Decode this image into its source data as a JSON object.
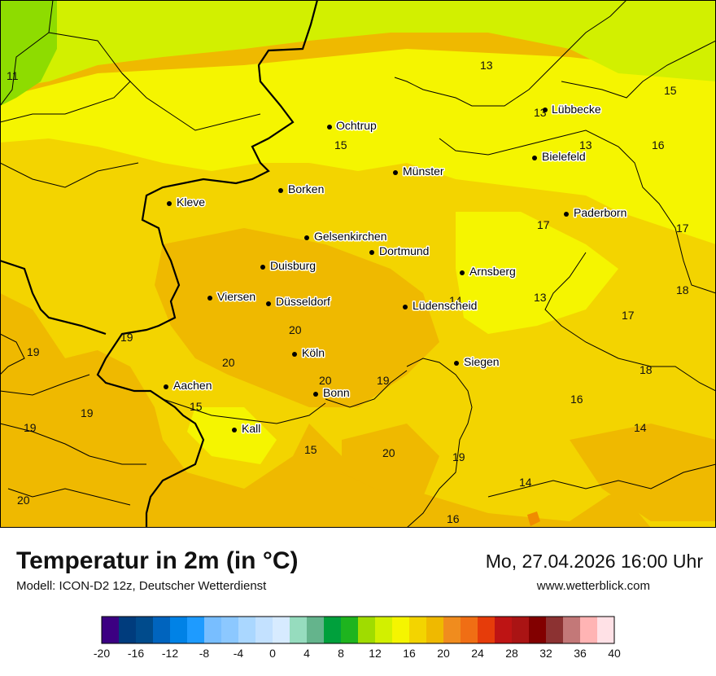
{
  "title": "Temperatur in 2m (in °C)",
  "model": "Modell: ICON-D2 12z, Deutscher Wetterdienst",
  "datetime": "Mo, 27.04.2026 16:00 Uhr",
  "website": "www.wetterblick.com",
  "colors": {
    "dark_green": "#8edc00",
    "lime": "#d2f000",
    "yellow_green": "#e6f500",
    "yellow": "#f5f500",
    "gold": "#f3d400",
    "orange_gold": "#efb900",
    "orange": "#f08c00"
  },
  "cities": [
    {
      "name": "Ochtrup"
    },
    {
      "name": "Lübbecke"
    },
    {
      "name": "Bielefeld"
    },
    {
      "name": "Münster"
    },
    {
      "name": "Borken"
    },
    {
      "name": "Kleve"
    },
    {
      "name": "Paderborn"
    },
    {
      "name": "Gelsenkirchen"
    },
    {
      "name": "Dortmund"
    },
    {
      "name": "Duisburg"
    },
    {
      "name": "Arnsberg"
    },
    {
      "name": "Viersen"
    },
    {
      "name": "Düsseldorf"
    },
    {
      "name": "Lüdenscheid"
    },
    {
      "name": "Köln"
    },
    {
      "name": "Siegen"
    },
    {
      "name": "Aachen"
    },
    {
      "name": "Bonn"
    },
    {
      "name": "Kall"
    }
  ],
  "value_labels": [
    "11",
    "13",
    "15",
    "13",
    "13",
    "16",
    "15",
    "17",
    "17",
    "18",
    "14",
    "13",
    "17",
    "20",
    "20",
    "19",
    "19",
    "18",
    "19",
    "16",
    "20",
    "19",
    "15",
    "19",
    "14",
    "15",
    "20",
    "19",
    "20",
    "14",
    "16"
  ],
  "colorbar": {
    "ticks": [
      "-20",
      "-16",
      "-12",
      "-8",
      "-4",
      "0",
      "4",
      "8",
      "12",
      "16",
      "20",
      "24",
      "28",
      "32",
      "36",
      "40"
    ],
    "colors": [
      "#3c0082",
      "#003c7d",
      "#004b8c",
      "#0064be",
      "#0082e6",
      "#1e9bff",
      "#78beff",
      "#8cc8ff",
      "#aad7ff",
      "#c3e1ff",
      "#d7ebff",
      "#96dcbe",
      "#64b48c",
      "#00a03c",
      "#1eb41e",
      "#a0dc00",
      "#d2f000",
      "#f5f500",
      "#f3d400",
      "#efb900",
      "#f08c1e",
      "#f06e14",
      "#e63c0a",
      "#be1414",
      "#aa1414",
      "#820000",
      "#8c3232",
      "#c37878",
      "#ffb4b4",
      "#ffe1e6"
    ]
  }
}
